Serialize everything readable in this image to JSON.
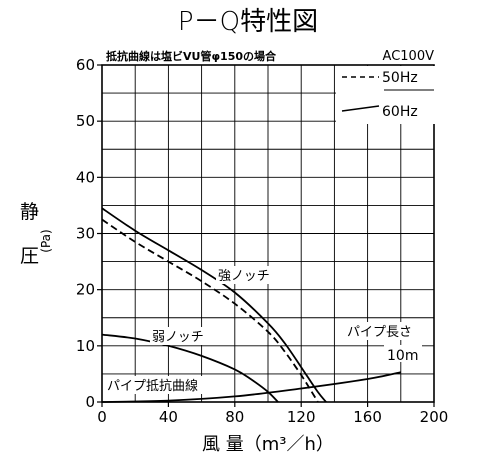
{
  "chart_data": {
    "type": "line",
    "title": "P－Q特性図",
    "note": "抵抗曲線は塩ビVU管φ150の場合",
    "power": "AC100V",
    "xlabel": "風 量（m³／h）",
    "ylabel_main": [
      "静",
      "圧"
    ],
    "ylabel_unit": "(Pa)",
    "xlim": [
      0,
      200
    ],
    "ylim": [
      0,
      60
    ],
    "x_ticks": [
      0,
      40,
      80,
      120,
      160,
      200
    ],
    "y_ticks": [
      0,
      10,
      20,
      30,
      40,
      50,
      60
    ],
    "grid": true,
    "legend": [
      {
        "label": "50Hz",
        "style": "dashed"
      },
      {
        "label": "60Hz",
        "style": "solid"
      }
    ],
    "series": [
      {
        "name": "強ノッチ 60Hz",
        "style": "solid",
        "points": [
          [
            0,
            34.5
          ],
          [
            20,
            30.5
          ],
          [
            40,
            27.0
          ],
          [
            60,
            23.5
          ],
          [
            80,
            19.5
          ],
          [
            100,
            14.0
          ],
          [
            110,
            10.5
          ],
          [
            120,
            6.2
          ],
          [
            130,
            1.8
          ],
          [
            135,
            0
          ]
        ]
      },
      {
        "name": "強ノッチ 50Hz",
        "style": "dashed",
        "points": [
          [
            0,
            32.5
          ],
          [
            20,
            28.5
          ],
          [
            40,
            25.0
          ],
          [
            60,
            21.5
          ],
          [
            80,
            17.5
          ],
          [
            100,
            12.5
          ],
          [
            110,
            9.0
          ],
          [
            120,
            4.8
          ],
          [
            127,
            1.5
          ],
          [
            130,
            0
          ]
        ]
      },
      {
        "name": "弱ノッチ",
        "style": "solid",
        "points": [
          [
            0,
            12.0
          ],
          [
            20,
            11.3
          ],
          [
            40,
            10.0
          ],
          [
            60,
            8.2
          ],
          [
            80,
            5.8
          ],
          [
            90,
            4.0
          ],
          [
            100,
            1.8
          ],
          [
            106,
            0
          ]
        ]
      },
      {
        "name": "パイプ抵抗曲線",
        "style": "solid",
        "points": [
          [
            0,
            0
          ],
          [
            40,
            0.25
          ],
          [
            80,
            1.0
          ],
          [
            120,
            2.4
          ],
          [
            160,
            4.1
          ],
          [
            180,
            5.3
          ]
        ]
      }
    ],
    "annotations": [
      "強ノッチ",
      "弱ノッチ",
      "パイプ抵抗曲線",
      "パイプ長さ",
      "10m"
    ]
  }
}
